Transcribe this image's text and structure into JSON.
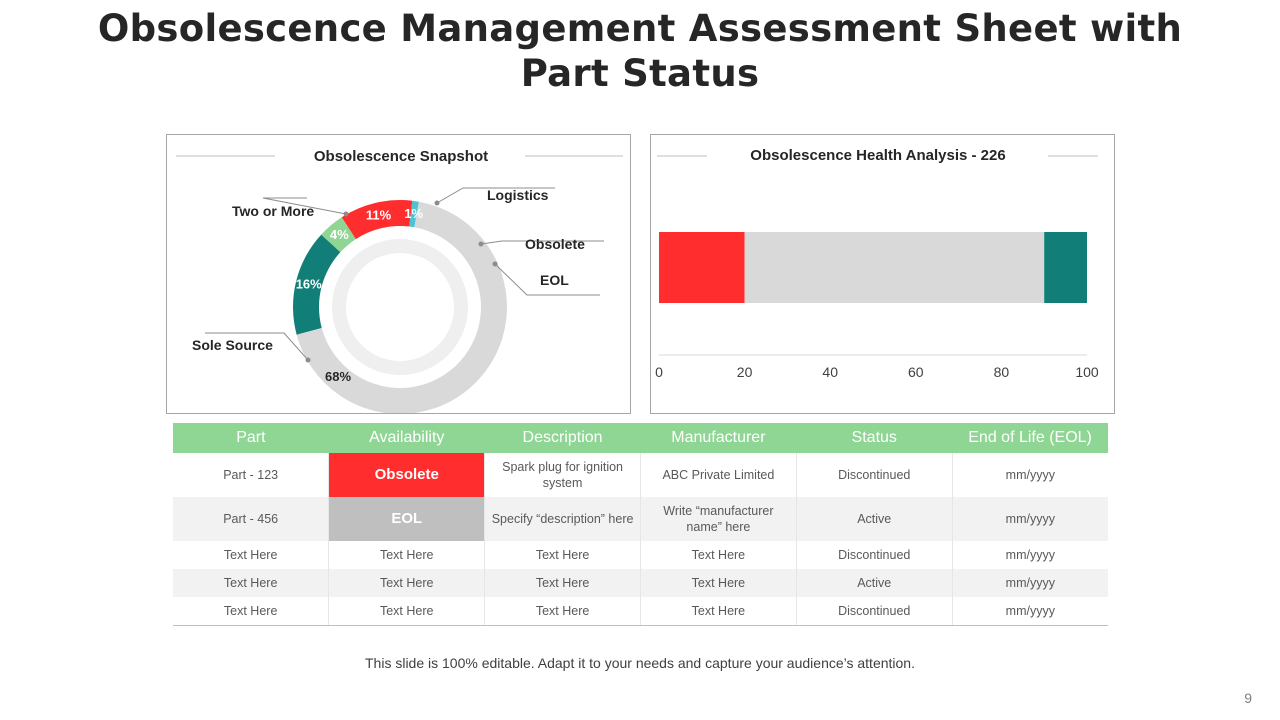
{
  "title": {
    "line1": "Obsolescence Management Assessment Sheet with",
    "line2": "Part Status"
  },
  "colors": {
    "teal": "#127e78",
    "green": "#8fd694",
    "red": "#ff2d2d",
    "cyan": "#4fc3d4",
    "grey": "#d9d9d9",
    "inner_ring": "#efefef"
  },
  "chart_data": [
    {
      "type": "pie",
      "title": "Obsolescence Snapshot",
      "categories": [
        "Two or More",
        "Logistics",
        "Obsolete",
        "EOL",
        "Sole Source"
      ],
      "values": [
        16,
        4,
        11,
        1,
        68
      ],
      "labels": [
        "16%",
        "4%",
        "11%",
        "1%",
        "68%"
      ],
      "colors": [
        "#127e78",
        "#8fd694",
        "#ff2d2d",
        "#4fc3d4",
        "#d9d9d9"
      ]
    },
    {
      "type": "bar",
      "title": "Obsolescence Health Analysis - 226",
      "orientation": "horizontal",
      "stacked": true,
      "series": [
        {
          "values": [
            20
          ],
          "color": "#ff2d2d"
        },
        {
          "values": [
            70
          ],
          "color": "#d9d9d9"
        },
        {
          "values": [
            10
          ],
          "color": "#127e78"
        }
      ],
      "xlim": [
        0,
        100
      ],
      "xticks": [
        "0",
        "20",
        "40",
        "60",
        "80",
        "100"
      ]
    }
  ],
  "table": {
    "headers": [
      "Part",
      "Availability",
      "Description",
      "Manufacturer",
      "Status",
      "End of Life (EOL)"
    ],
    "rows": [
      [
        "Part - 123",
        "Obsolete",
        "Spark plug for ignition system",
        "ABC Private  Limited",
        "Discontinued",
        "mm/yyyy"
      ],
      [
        "Part - 456",
        "EOL",
        "Specify “description” here",
        "Write “manufacturer name” here",
        "Active",
        "mm/yyyy"
      ],
      [
        "Text Here",
        "Text Here",
        "Text Here",
        "Text Here",
        "Discontinued",
        "mm/yyyy"
      ],
      [
        "Text Here",
        "Text Here",
        "Text Here",
        "Text Here",
        "Active",
        "mm/yyyy"
      ],
      [
        "Text Here",
        "Text Here",
        "Text Here",
        "Text Here",
        "Discontinued",
        "mm/yyyy"
      ]
    ]
  },
  "footer": "This slide is 100% editable. Adapt it to your needs and capture your audience’s attention.",
  "page_number": "9"
}
